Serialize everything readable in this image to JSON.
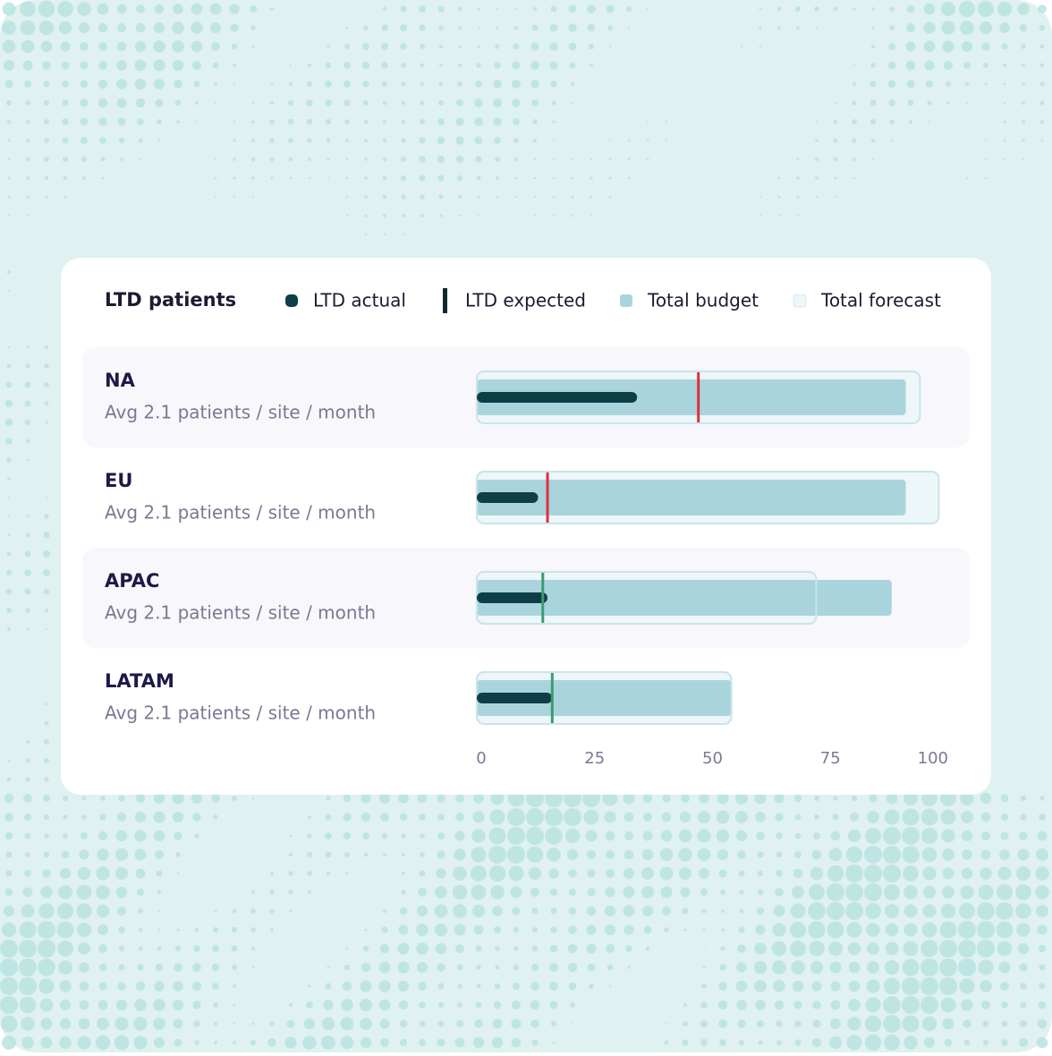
{
  "chart_data": {
    "type": "bullet",
    "title": "LTD patients",
    "categories": [
      "NA",
      "EU",
      "APAC",
      "LATAM"
    ],
    "subtitles": [
      "Avg 2.1 patients / site / month",
      "Avg 2.1 patients / site / month",
      "Avg 2.1 patients / site / month",
      "Avg 2.1 patients / site / month"
    ],
    "series": [
      {
        "name": "LTD actual",
        "color": "#0e3f48",
        "values": [
          34,
          13,
          15,
          16
        ]
      },
      {
        "name": "LTD expected",
        "color": "#0e2a30",
        "values": [
          47,
          15,
          14,
          16
        ],
        "marker_colors": [
          "#e0303a",
          "#e0303a",
          "#3e9a6e",
          "#3e9a6e"
        ]
      },
      {
        "name": "Total budget",
        "color": "#aad4dc",
        "values": [
          91,
          91,
          88,
          54
        ]
      },
      {
        "name": "Total forecast",
        "color": "#edf6f9",
        "values": [
          94,
          98,
          72,
          54
        ]
      }
    ],
    "xlim": [
      0,
      100
    ],
    "xticks": [
      0,
      25,
      50,
      75,
      100
    ]
  }
}
